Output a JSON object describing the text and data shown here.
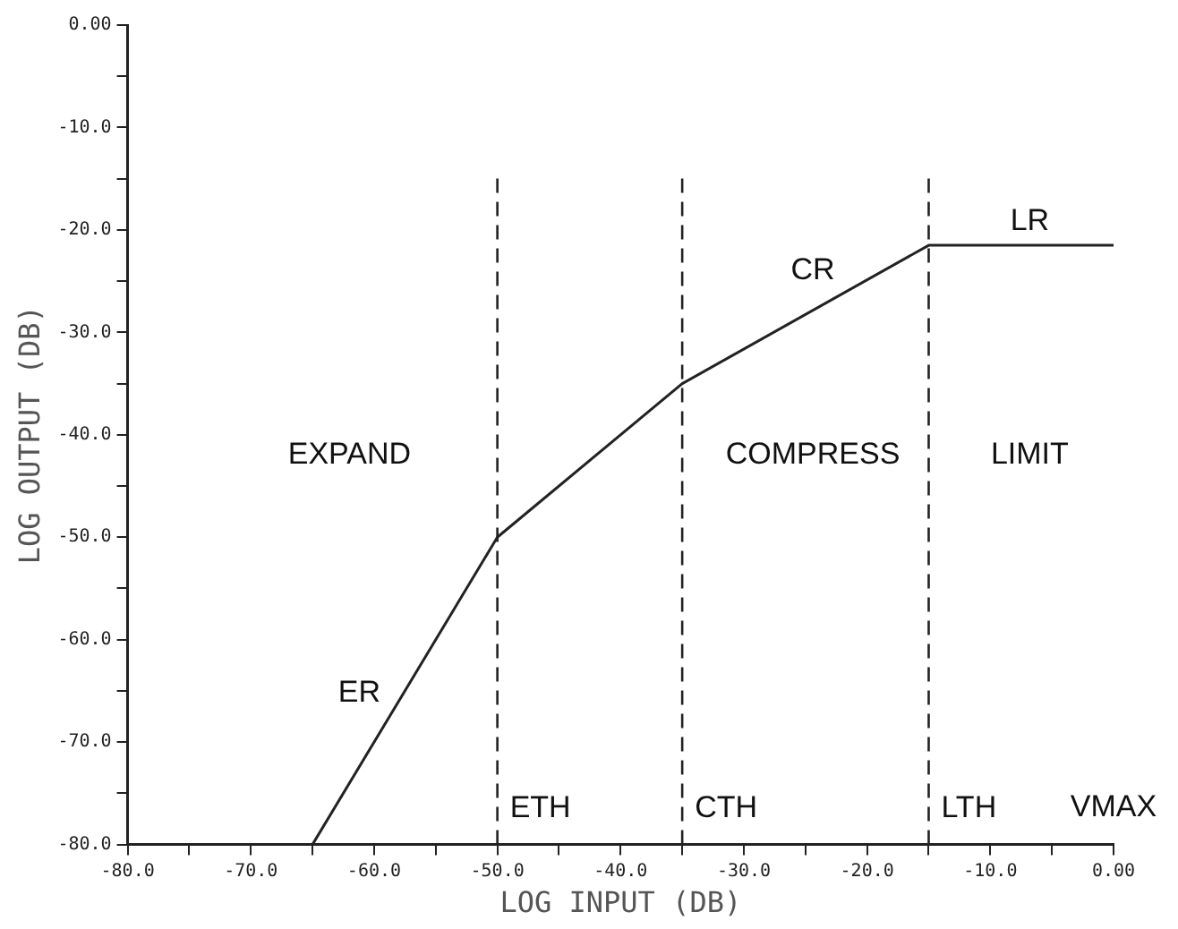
{
  "chart_data": {
    "type": "line",
    "xlabel": "LOG INPUT (DB)",
    "ylabel": "LOG OUTPUT (DB)",
    "x": [
      -65,
      -50,
      -35,
      -15,
      0
    ],
    "series": [
      {
        "color": "#222222",
        "values": [
          -80,
          -50,
          -35,
          -21.5,
          -21.5
        ]
      }
    ],
    "xlim": [
      -80,
      0
    ],
    "xticks": [
      {
        "value": -80,
        "label": "-80.0"
      },
      {
        "value": -75,
        "label": null
      },
      {
        "value": -70,
        "label": "-70.0"
      },
      {
        "value": -65,
        "label": null
      },
      {
        "value": -60,
        "label": "-60.0"
      },
      {
        "value": -55,
        "label": null
      },
      {
        "value": -50,
        "label": "-50.0"
      },
      {
        "value": -45,
        "label": null
      },
      {
        "value": -40,
        "label": "-40.0"
      },
      {
        "value": -35,
        "label": null
      },
      {
        "value": -30,
        "label": "-30.0"
      },
      {
        "value": -25,
        "label": null
      },
      {
        "value": -20,
        "label": "-20.0"
      },
      {
        "value": -15,
        "label": null
      },
      {
        "value": -10,
        "label": "-10.0"
      },
      {
        "value": -5,
        "label": null
      },
      {
        "value": 0,
        "label": "0.00"
      }
    ],
    "ylim": [
      -80,
      0
    ],
    "yticks": [
      {
        "value": -80,
        "label": "-80.0"
      },
      {
        "value": -75,
        "label": null
      },
      {
        "value": -70,
        "label": "-70.0"
      },
      {
        "value": -65,
        "label": null
      },
      {
        "value": -60,
        "label": "-60.0"
      },
      {
        "value": -55,
        "label": null
      },
      {
        "value": -50,
        "label": "-50.0"
      },
      {
        "value": -45,
        "label": null
      },
      {
        "value": -40,
        "label": "-40.0"
      },
      {
        "value": -35,
        "label": null
      },
      {
        "value": -30,
        "label": "-30.0"
      },
      {
        "value": -25,
        "label": null
      },
      {
        "value": -20,
        "label": "-20.0"
      },
      {
        "value": -15,
        "label": null
      },
      {
        "value": -10,
        "label": "-10.0"
      },
      {
        "value": -5,
        "label": null
      },
      {
        "value": 0,
        "label": "0.00"
      }
    ],
    "ref_lines": [
      {
        "axis": "x",
        "value": -50,
        "label": "ETH",
        "line_style": "dashed"
      },
      {
        "axis": "x",
        "value": -35,
        "label": "CTH",
        "line_style": "dashed"
      },
      {
        "axis": "x",
        "value": -15,
        "label": "LTH",
        "line_style": "dashed"
      }
    ],
    "annotations": [
      "ER",
      "CR",
      "LR",
      "EXPAND",
      "COMPRESS",
      "LIMIT",
      "VMAX"
    ],
    "grid": false,
    "legend": false,
    "marker": "none",
    "line_style": "solid"
  }
}
